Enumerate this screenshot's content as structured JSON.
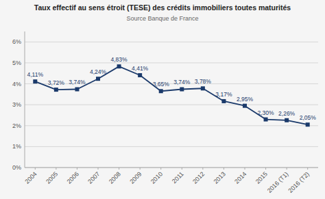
{
  "chart_data": {
    "type": "line",
    "title": "Taux effectif au sens étroit (TESE) des crédits immobiliers toutes maturités",
    "subtitle": "Source Banque de France",
    "categories": [
      "2004",
      "2005",
      "2006",
      "2007",
      "2008",
      "2009",
      "2010",
      "2011",
      "2012",
      "2013",
      "2014",
      "2015",
      "2016 (T1)",
      "2016 (T2)"
    ],
    "values": [
      4.11,
      3.72,
      3.74,
      4.24,
      4.83,
      4.41,
      3.65,
      3.74,
      3.78,
      3.17,
      2.95,
      2.3,
      2.26,
      2.05
    ],
    "value_labels": [
      "4,11%",
      "3,72%",
      "3,74%",
      "4,24%",
      "4,83%",
      "4,41%",
      "3,65%",
      "3,74%",
      "3,78%",
      "3,17%",
      "2,95%",
      "2,30%",
      "2,26%",
      "2,05%"
    ],
    "color": "#1B3A6B",
    "marker": "square",
    "ylim": [
      0,
      6.5
    ],
    "yticks": [
      {
        "value": 0,
        "label": "0%"
      },
      {
        "value": 1,
        "label": "1%"
      },
      {
        "value": 2,
        "label": "2%"
      },
      {
        "value": 3,
        "label": "3%"
      },
      {
        "value": 4,
        "label": "4%"
      },
      {
        "value": 5,
        "label": "5%"
      },
      {
        "value": 6,
        "label": "6%"
      }
    ],
    "grid": true,
    "data_labels": true
  }
}
